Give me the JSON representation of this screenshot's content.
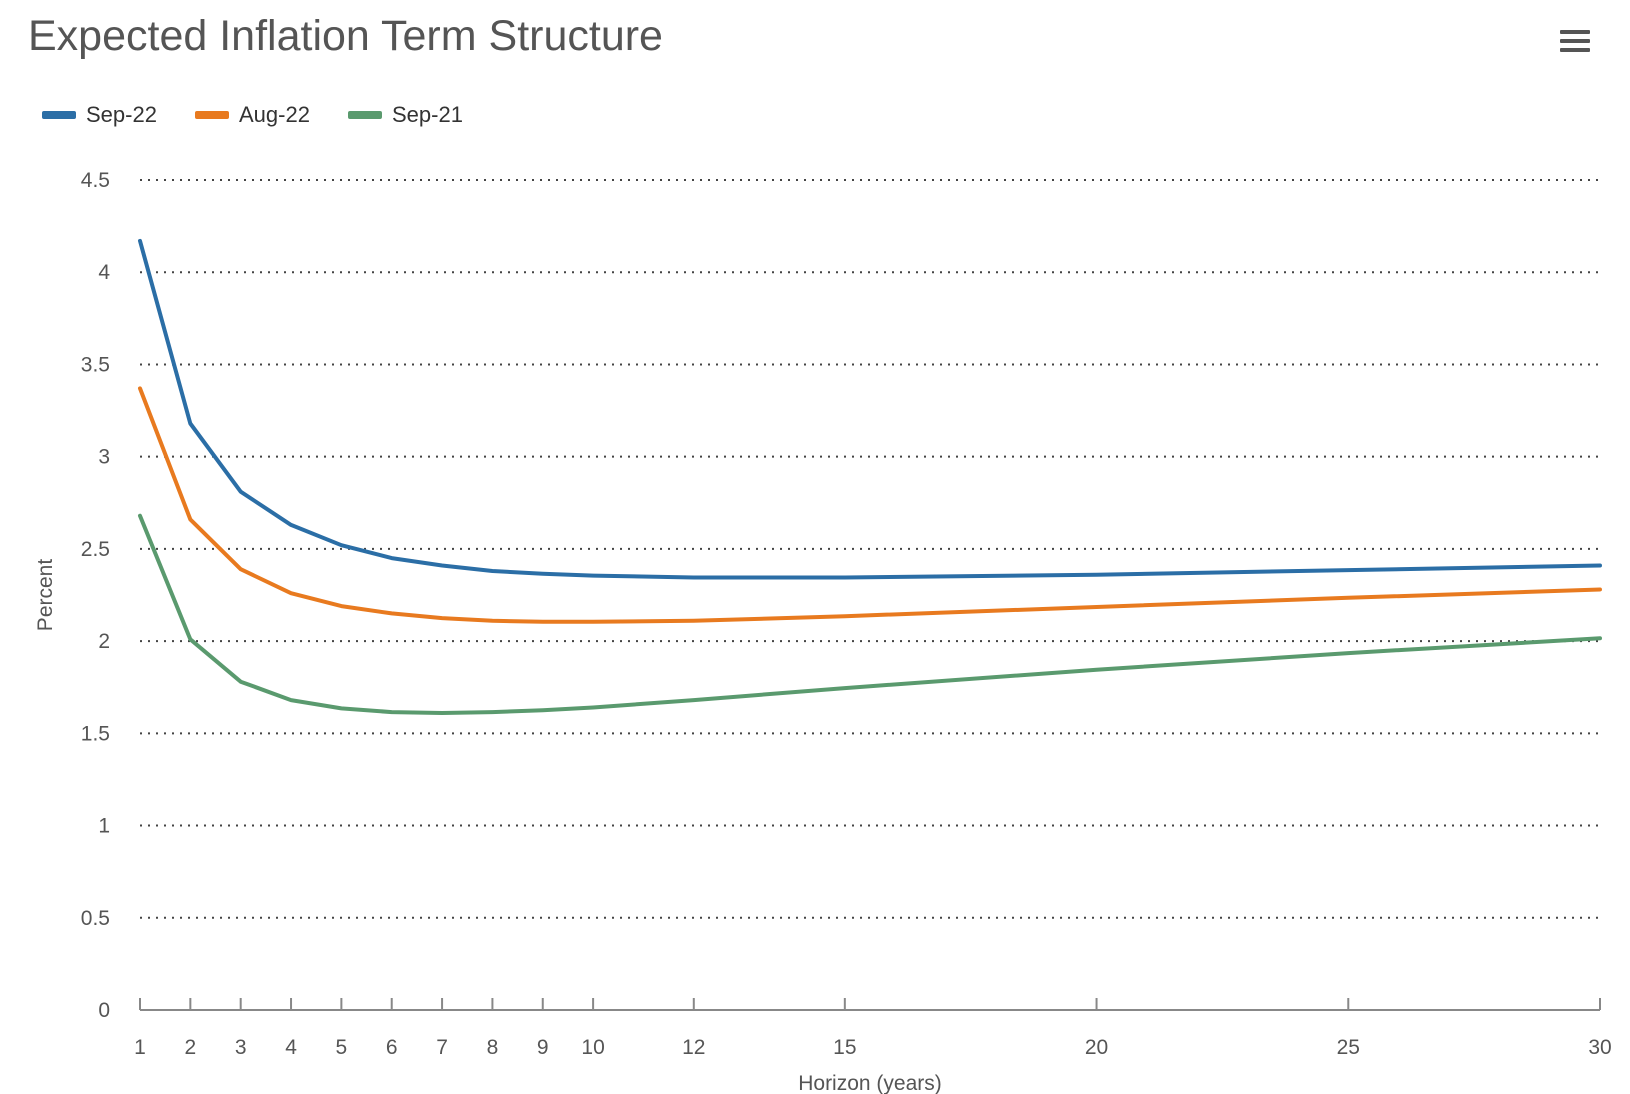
{
  "menu": {
    "icon": "hamburger-menu-icon"
  },
  "chart_data": {
    "type": "line",
    "title": "Expected Inflation Term Structure",
    "xlabel": "Horizon (years)",
    "ylabel": "Percent",
    "xlim": [
      1,
      30
    ],
    "ylim": [
      0,
      4.5
    ],
    "x_ticks": [
      1,
      2,
      3,
      4,
      5,
      6,
      7,
      8,
      9,
      10,
      12,
      15,
      20,
      25,
      30
    ],
    "y_ticks": [
      0,
      0.5,
      1,
      1.5,
      2,
      2.5,
      3,
      3.5,
      4,
      4.5
    ],
    "grid": "horizontal dotted",
    "legend_position": "top-left",
    "x": [
      1,
      2,
      3,
      4,
      5,
      6,
      7,
      8,
      9,
      10,
      12,
      15,
      20,
      25,
      30
    ],
    "series": [
      {
        "name": "Sep-22",
        "color": "#2b6ea6",
        "values": [
          4.17,
          3.18,
          2.81,
          2.63,
          2.52,
          2.45,
          2.41,
          2.38,
          2.365,
          2.355,
          2.345,
          2.345,
          2.36,
          2.385,
          2.41
        ]
      },
      {
        "name": "Aug-22",
        "color": "#e87a1f",
        "values": [
          3.37,
          2.66,
          2.39,
          2.26,
          2.19,
          2.15,
          2.125,
          2.11,
          2.105,
          2.105,
          2.11,
          2.135,
          2.185,
          2.235,
          2.28
        ]
      },
      {
        "name": "Sep-21",
        "color": "#5a9a6e",
        "values": [
          2.68,
          2.01,
          1.78,
          1.68,
          1.635,
          1.615,
          1.61,
          1.615,
          1.625,
          1.64,
          1.68,
          1.745,
          1.845,
          1.935,
          2.015
        ]
      }
    ]
  }
}
